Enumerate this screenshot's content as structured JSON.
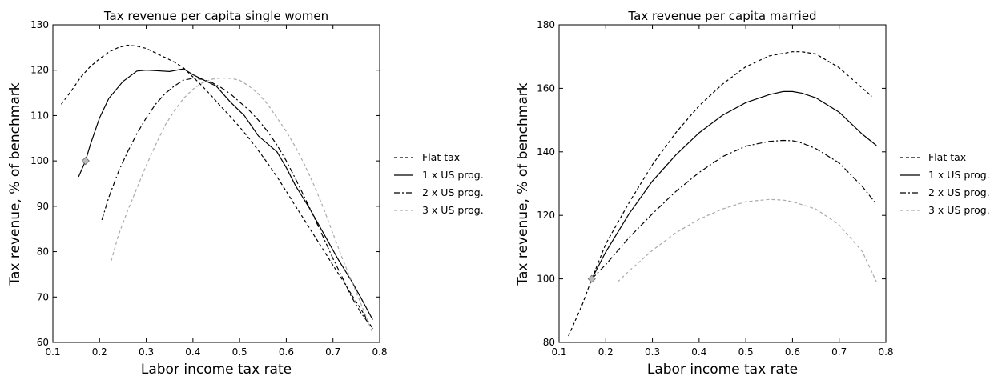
{
  "charts": [
    {
      "title": "Tax revenue per capita single women",
      "xlabel": "Labor income tax rate",
      "ylabel": "Tax revenue, % of benchmark",
      "xticks": [
        "0.1",
        "0.2",
        "0.3",
        "0.4",
        "0.5",
        "0.6",
        "0.7",
        "0.8"
      ],
      "yticks": [
        "60",
        "70",
        "80",
        "90",
        "100",
        "110",
        "120",
        "130"
      ]
    },
    {
      "title": "Tax revenue per capita married",
      "xlabel": "Labor income tax rate",
      "ylabel": "Tax revenue, % of benchmark",
      "xticks": [
        "0.1",
        "0.2",
        "0.3",
        "0.4",
        "0.5",
        "0.6",
        "0.7",
        "0.8"
      ],
      "yticks": [
        "80",
        "100",
        "120",
        "140",
        "160",
        "180"
      ]
    }
  ],
  "chart_data": [
    {
      "type": "line",
      "title": "Tax revenue per capita single women",
      "xlabel": "Labor income tax rate",
      "ylabel": "Tax revenue, % of benchmark",
      "xlim": [
        0.1,
        0.8
      ],
      "ylim": [
        60,
        130
      ],
      "grid": false,
      "legend": "right",
      "series": [
        {
          "name": "Flat tax",
          "style": "dashed",
          "color": "#000000",
          "x": [
            0.118,
            0.14,
            0.16,
            0.18,
            0.2,
            0.22,
            0.24,
            0.26,
            0.28,
            0.3,
            0.32,
            0.34,
            0.36,
            0.38,
            0.4,
            0.42,
            0.44,
            0.46,
            0.48,
            0.5,
            0.52,
            0.54,
            0.56,
            0.58,
            0.6,
            0.62,
            0.64,
            0.66,
            0.68,
            0.7,
            0.72,
            0.74,
            0.76,
            0.785
          ],
          "y": [
            112.5,
            115.5,
            118.5,
            120.8,
            122.5,
            124.0,
            125.0,
            125.5,
            125.3,
            124.8,
            123.8,
            122.8,
            121.8,
            120.5,
            118.5,
            116.5,
            114.3,
            112.0,
            109.8,
            107.5,
            105.0,
            102.3,
            99.5,
            96.5,
            93.3,
            90.0,
            86.8,
            83.5,
            80.3,
            77.0,
            73.8,
            70.5,
            67.3,
            63.0
          ]
        },
        {
          "name": "1 x US prog.",
          "style": "solid",
          "color": "#000000",
          "x": [
            0.155,
            0.17,
            0.18,
            0.2,
            0.22,
            0.25,
            0.28,
            0.3,
            0.32,
            0.35,
            0.38,
            0.4,
            0.42,
            0.45,
            0.48,
            0.51,
            0.54,
            0.58,
            0.6,
            0.62,
            0.65,
            0.68,
            0.71,
            0.74,
            0.76,
            0.785
          ],
          "y": [
            96.5,
            100.0,
            103.5,
            109.5,
            113.8,
            117.5,
            119.8,
            120.0,
            119.9,
            119.7,
            120.3,
            119.0,
            118.0,
            116.5,
            113.0,
            110.0,
            105.5,
            102.0,
            98.5,
            94.5,
            89.5,
            84.0,
            78.5,
            73.5,
            69.8,
            65.0
          ]
        },
        {
          "name": "2 x US prog.",
          "style": "dashdot",
          "color": "#000000",
          "x": [
            0.205,
            0.22,
            0.24,
            0.26,
            0.28,
            0.3,
            0.32,
            0.34,
            0.36,
            0.38,
            0.4,
            0.42,
            0.44,
            0.46,
            0.48,
            0.5,
            0.52,
            0.54,
            0.56,
            0.58,
            0.6,
            0.62,
            0.64,
            0.66,
            0.68,
            0.7,
            0.72,
            0.74,
            0.76,
            0.785
          ],
          "y": [
            87.0,
            92.0,
            97.5,
            102.0,
            106.0,
            109.5,
            112.5,
            114.8,
            116.5,
            117.8,
            118.2,
            118.0,
            117.3,
            116.2,
            114.8,
            113.0,
            111.2,
            109.0,
            106.5,
            103.5,
            100.0,
            96.0,
            91.8,
            87.5,
            83.0,
            78.5,
            74.3,
            70.0,
            66.5,
            63.0
          ]
        },
        {
          "name": "3 x US prog.",
          "style": "dashed",
          "color": "#aaaaaa",
          "x": [
            0.225,
            0.24,
            0.26,
            0.28,
            0.3,
            0.32,
            0.34,
            0.36,
            0.38,
            0.4,
            0.42,
            0.44,
            0.46,
            0.48,
            0.5,
            0.52,
            0.54,
            0.56,
            0.58,
            0.6,
            0.62,
            0.64,
            0.66,
            0.68,
            0.7,
            0.72,
            0.74,
            0.76,
            0.785
          ],
          "y": [
            78.0,
            83.5,
            89.0,
            94.0,
            99.0,
            103.5,
            107.8,
            111.0,
            113.8,
            115.8,
            117.2,
            118.0,
            118.3,
            118.2,
            117.8,
            116.5,
            114.8,
            112.5,
            109.5,
            106.5,
            103.0,
            99.0,
            94.5,
            89.5,
            84.0,
            78.5,
            73.5,
            68.5,
            62.0
          ]
        }
      ],
      "marker": {
        "x": 0.17,
        "y": 100,
        "shape": "diamond",
        "color": "#bbbbbb"
      }
    },
    {
      "type": "line",
      "title": "Tax revenue per capita married",
      "xlabel": "Labor income tax rate",
      "ylabel": "Tax revenue, % of benchmark",
      "xlim": [
        0.1,
        0.8
      ],
      "ylim": [
        80,
        180
      ],
      "grid": false,
      "legend": "right",
      "series": [
        {
          "name": "Flat tax",
          "style": "dashed",
          "color": "#000000",
          "x": [
            0.12,
            0.15,
            0.17,
            0.2,
            0.25,
            0.3,
            0.35,
            0.4,
            0.45,
            0.5,
            0.55,
            0.6,
            0.62,
            0.65,
            0.7,
            0.75,
            0.77
          ],
          "y": [
            82.0,
            92.0,
            100.0,
            111.0,
            124.0,
            136.0,
            146.0,
            154.5,
            161.3,
            166.8,
            170.2,
            171.5,
            171.5,
            170.8,
            166.5,
            160.0,
            157.5
          ]
        },
        {
          "name": "1 x US prog.",
          "style": "solid",
          "color": "#000000",
          "x": [
            0.17,
            0.2,
            0.25,
            0.3,
            0.35,
            0.4,
            0.45,
            0.5,
            0.55,
            0.58,
            0.6,
            0.62,
            0.65,
            0.7,
            0.75,
            0.78
          ],
          "y": [
            100.0,
            108.5,
            120.5,
            130.8,
            139.0,
            146.0,
            151.5,
            155.5,
            158.0,
            159.0,
            159.0,
            158.5,
            157.0,
            152.5,
            145.5,
            142.0
          ]
        },
        {
          "name": "2 x US prog.",
          "style": "dashdot",
          "color": "#000000",
          "x": [
            0.17,
            0.2,
            0.25,
            0.3,
            0.35,
            0.4,
            0.45,
            0.5,
            0.55,
            0.58,
            0.6,
            0.62,
            0.65,
            0.7,
            0.75,
            0.78
          ],
          "y": [
            100.0,
            104.5,
            113.0,
            120.5,
            127.5,
            133.5,
            138.5,
            141.8,
            143.3,
            143.6,
            143.5,
            142.8,
            141.0,
            136.5,
            129.0,
            123.5
          ]
        },
        {
          "name": "3 x US prog.",
          "style": "dashed",
          "color": "#aaaaaa",
          "x": [
            0.225,
            0.25,
            0.3,
            0.35,
            0.4,
            0.45,
            0.5,
            0.55,
            0.58,
            0.6,
            0.65,
            0.7,
            0.75,
            0.78
          ],
          "y": [
            99.0,
            102.5,
            109.0,
            114.5,
            118.8,
            122.0,
            124.3,
            125.0,
            124.8,
            124.3,
            122.0,
            117.0,
            108.5,
            99.0
          ]
        }
      ],
      "marker": {
        "x": 0.17,
        "y": 100,
        "shape": "diamond",
        "color": "#bbbbbb"
      }
    }
  ]
}
